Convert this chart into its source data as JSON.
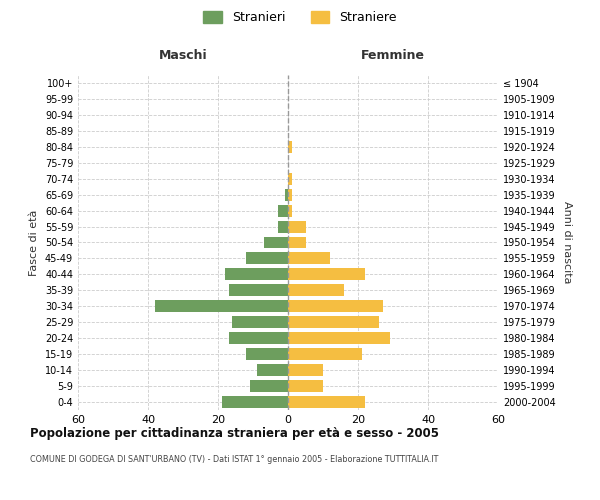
{
  "age_groups": [
    "0-4",
    "5-9",
    "10-14",
    "15-19",
    "20-24",
    "25-29",
    "30-34",
    "35-39",
    "40-44",
    "45-49",
    "50-54",
    "55-59",
    "60-64",
    "65-69",
    "70-74",
    "75-79",
    "80-84",
    "85-89",
    "90-94",
    "95-99",
    "100+"
  ],
  "birth_years": [
    "2000-2004",
    "1995-1999",
    "1990-1994",
    "1985-1989",
    "1980-1984",
    "1975-1979",
    "1970-1974",
    "1965-1969",
    "1960-1964",
    "1955-1959",
    "1950-1954",
    "1945-1949",
    "1940-1944",
    "1935-1939",
    "1930-1934",
    "1925-1929",
    "1920-1924",
    "1915-1919",
    "1910-1914",
    "1905-1909",
    "≤ 1904"
  ],
  "maschi": [
    19,
    11,
    9,
    12,
    17,
    16,
    38,
    17,
    18,
    12,
    7,
    3,
    3,
    1,
    0,
    0,
    0,
    0,
    0,
    0,
    0
  ],
  "femmine": [
    22,
    10,
    10,
    21,
    29,
    26,
    27,
    16,
    22,
    12,
    5,
    5,
    1,
    1,
    1,
    0,
    1,
    0,
    0,
    0,
    0
  ],
  "maschi_color": "#6d9e5e",
  "femmine_color": "#f5be41",
  "grid_color": "#cccccc",
  "center_line_color": "#999999",
  "background_color": "#ffffff",
  "title": "Popolazione per cittadinanza straniera per età e sesso - 2005",
  "subtitle": "COMUNE DI GODEGA DI SANT'URBANO (TV) - Dati ISTAT 1° gennaio 2005 - Elaborazione TUTTITALIA.IT",
  "xlabel_left": "Maschi",
  "xlabel_right": "Femmine",
  "ylabel_left": "Fasce di età",
  "ylabel_right": "Anni di nascita",
  "legend_maschi": "Stranieri",
  "legend_femmine": "Straniere",
  "xlim": 60,
  "bar_height": 0.75
}
